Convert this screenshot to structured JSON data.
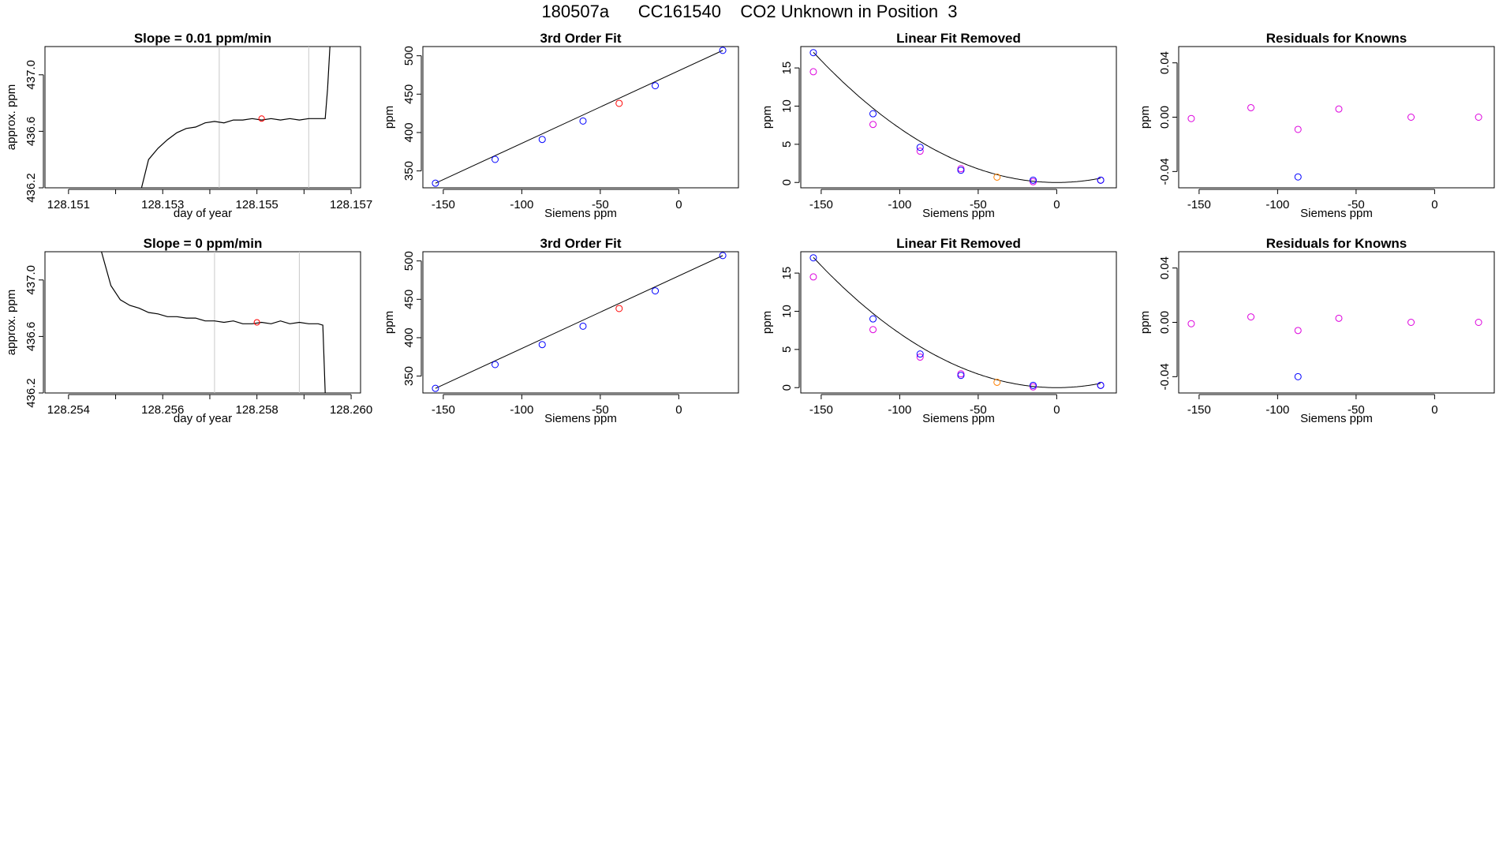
{
  "page_title": "180507a      CC161540    CO2 Unknown in Position  3",
  "colors": {
    "known": "#0000ff",
    "unknown": "#ff0000",
    "adjusted": "#dd00dd",
    "orange": "#ff8000",
    "line": "#000000",
    "vline": "#c8c8c8"
  },
  "chart_data": [
    {
      "type": "line",
      "title": "Slope =  0.01  ppm/min",
      "xlabel": "day of year",
      "ylabel": "approx. ppm",
      "xlim": [
        128.1505,
        128.1572
      ],
      "ylim": [
        436.2,
        437.2
      ],
      "xticks": [
        128.151,
        128.152,
        128.153,
        128.154,
        128.155,
        128.156,
        128.157
      ],
      "xticklabels": [
        "128.151",
        "",
        "128.153",
        "",
        "128.155",
        "",
        "128.157"
      ],
      "yticks": [
        436.2,
        436.6,
        437.0
      ],
      "yticklabels": [
        "436.2",
        "436.6",
        "437.0"
      ],
      "vlines": [
        128.1542,
        128.1561
      ],
      "x": [
        128.15255,
        128.1527,
        128.1529,
        128.1531,
        128.1533,
        128.1535,
        128.1537,
        128.1539,
        128.1541,
        128.1543,
        128.1545,
        128.1547,
        128.1549,
        128.1551,
        128.1553,
        128.1555,
        128.1557,
        128.1559,
        128.1561,
        128.1563,
        128.15645,
        128.1565,
        128.15655
      ],
      "y": [
        436.2,
        436.4,
        436.48,
        436.54,
        436.59,
        436.62,
        436.63,
        436.66,
        436.67,
        436.66,
        436.68,
        436.68,
        436.69,
        436.68,
        436.69,
        436.68,
        436.69,
        436.68,
        436.69,
        436.69,
        436.69,
        436.9,
        437.2
      ],
      "marker": {
        "x": 128.1551,
        "y": 436.69
      }
    },
    {
      "type": "scatter",
      "title": "3rd Order Fit",
      "xlabel": "Siemens ppm",
      "ylabel": "ppm",
      "xlim": [
        -163,
        38
      ],
      "ylim": [
        328,
        512
      ],
      "xticks": [
        -150,
        -100,
        -50,
        0
      ],
      "yticks": [
        350,
        400,
        450,
        500
      ],
      "fit": {
        "x": [
          -155,
          28
        ],
        "y": [
          334,
          507
        ]
      },
      "knowns": {
        "x": [
          -155,
          -117,
          -87,
          -61,
          -15,
          28
        ],
        "y": [
          334,
          365,
          391,
          415,
          461,
          507
        ]
      },
      "unknown": {
        "x": [
          -38
        ],
        "y": [
          438
        ]
      }
    },
    {
      "type": "scatter",
      "title": "Linear Fit Removed",
      "xlabel": "Siemens ppm",
      "ylabel": "ppm",
      "xlim": [
        -163,
        38
      ],
      "ylim": [
        -0.7,
        17.8
      ],
      "xticks": [
        -150,
        -100,
        -50,
        0
      ],
      "yticks": [
        0,
        5,
        10,
        15
      ],
      "curve_coeffs": [
        0,
        0,
        0.00071
      ],
      "knowns": {
        "x": [
          -155,
          -117,
          -87,
          -61,
          -15,
          28
        ],
        "y": [
          17,
          9,
          4.6,
          1.6,
          0.3,
          0.3
        ]
      },
      "adjusted": {
        "x": [
          -155,
          -117,
          -87,
          -61,
          -15,
          28
        ],
        "y": [
          14.5,
          7.6,
          4.1,
          1.8,
          0.1,
          0.3
        ]
      },
      "unknown": {
        "x": [
          -38
        ],
        "y": [
          0.7
        ]
      }
    },
    {
      "type": "scatter",
      "title": "Residuals for Knowns",
      "xlabel": "Siemens ppm",
      "ylabel": "ppm",
      "xlim": [
        -163,
        38
      ],
      "ylim": [
        -0.052,
        0.052
      ],
      "xticks": [
        -150,
        -100,
        -50,
        0
      ],
      "yticks": [
        -0.04,
        0.0,
        0.04
      ],
      "yticklabels": [
        "-0.04",
        "0.00",
        "0.04"
      ],
      "knowns": {
        "x": [
          -87
        ],
        "y": [
          -0.044
        ]
      },
      "adjusted": {
        "x": [
          -155,
          -117,
          -87,
          -61,
          -15,
          28
        ],
        "y": [
          -0.001,
          0.007,
          -0.009,
          0.006,
          0.0,
          0.0
        ]
      }
    },
    {
      "type": "line",
      "title": "Slope =  0  ppm/min",
      "xlabel": "day of year",
      "ylabel": "approx. ppm",
      "xlim": [
        128.2535,
        128.2602
      ],
      "ylim": [
        436.2,
        437.2
      ],
      "xticks": [
        128.254,
        128.255,
        128.256,
        128.257,
        128.258,
        128.259,
        128.26
      ],
      "xticklabels": [
        "128.254",
        "",
        "128.256",
        "",
        "128.258",
        "",
        "128.260"
      ],
      "yticks": [
        436.2,
        436.6,
        437.0
      ],
      "yticklabels": [
        "436.2",
        "436.6",
        "437.0"
      ],
      "vlines": [
        128.2571,
        128.2589
      ],
      "x": [
        128.2547,
        128.2549,
        128.2551,
        128.2553,
        128.2555,
        128.2557,
        128.2559,
        128.2561,
        128.2563,
        128.2565,
        128.2567,
        128.2569,
        128.2571,
        128.2573,
        128.2575,
        128.2577,
        128.2579,
        128.2581,
        128.2583,
        128.2585,
        128.2587,
        128.2589,
        128.2591,
        128.2593,
        128.2594,
        128.25945
      ],
      "y": [
        437.2,
        436.96,
        436.86,
        436.82,
        436.8,
        436.77,
        436.76,
        436.74,
        436.74,
        436.73,
        436.73,
        436.71,
        436.71,
        436.7,
        436.71,
        436.69,
        436.69,
        436.7,
        436.69,
        436.71,
        436.69,
        436.7,
        436.69,
        436.69,
        436.68,
        436.2
      ],
      "marker": {
        "x": 128.258,
        "y": 436.7
      }
    },
    {
      "type": "scatter",
      "title": "3rd Order Fit",
      "xlabel": "Siemens ppm",
      "ylabel": "ppm",
      "xlim": [
        -163,
        38
      ],
      "ylim": [
        328,
        512
      ],
      "xticks": [
        -150,
        -100,
        -50,
        0
      ],
      "yticks": [
        350,
        400,
        450,
        500
      ],
      "fit": {
        "x": [
          -155,
          28
        ],
        "y": [
          334,
          507
        ]
      },
      "knowns": {
        "x": [
          -155,
          -117,
          -87,
          -61,
          -15,
          28
        ],
        "y": [
          334,
          365,
          391,
          415,
          461,
          507
        ]
      },
      "unknown": {
        "x": [
          -38
        ],
        "y": [
          438
        ]
      }
    },
    {
      "type": "scatter",
      "title": "Linear Fit Removed",
      "xlabel": "Siemens ppm",
      "ylabel": "ppm",
      "xlim": [
        -163,
        38
      ],
      "ylim": [
        -0.7,
        17.8
      ],
      "xticks": [
        -150,
        -100,
        -50,
        0
      ],
      "yticks": [
        0,
        5,
        10,
        15
      ],
      "curve_coeffs": [
        0,
        0,
        0.00071
      ],
      "knowns": {
        "x": [
          -155,
          -117,
          -87,
          -61,
          -15,
          28
        ],
        "y": [
          17,
          9,
          4.4,
          1.6,
          0.3,
          0.3
        ]
      },
      "adjusted": {
        "x": [
          -155,
          -117,
          -87,
          -61,
          -15,
          28
        ],
        "y": [
          14.5,
          7.6,
          4.0,
          1.8,
          0.1,
          0.3
        ]
      },
      "unknown": {
        "x": [
          -38
        ],
        "y": [
          0.7
        ]
      }
    },
    {
      "type": "scatter",
      "title": "Residuals for Knowns",
      "xlabel": "Siemens ppm",
      "ylabel": "ppm",
      "xlim": [
        -163,
        38
      ],
      "ylim": [
        -0.052,
        0.052
      ],
      "xticks": [
        -150,
        -100,
        -50,
        0
      ],
      "yticks": [
        -0.04,
        0.0,
        0.04
      ],
      "yticklabels": [
        "-0.04",
        "0.00",
        "0.04"
      ],
      "knowns": {
        "x": [
          -87
        ],
        "y": [
          -0.04
        ]
      },
      "adjusted": {
        "x": [
          -155,
          -117,
          -87,
          -61,
          -15,
          28
        ],
        "y": [
          -0.001,
          0.004,
          -0.006,
          0.003,
          0.0,
          0.0
        ]
      }
    }
  ]
}
